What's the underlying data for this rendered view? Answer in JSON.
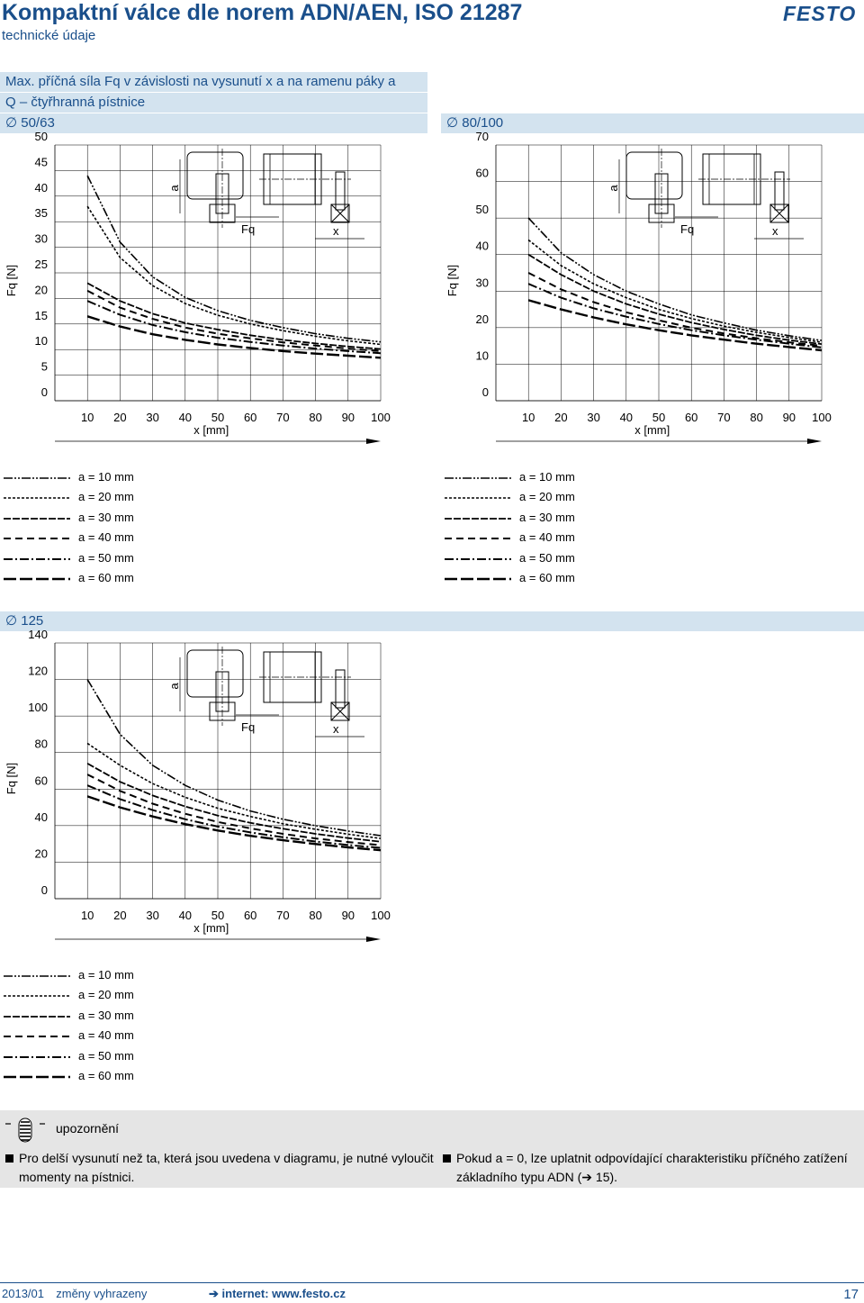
{
  "header": {
    "title": "Kompaktní válce dle norem ADN/AEN, ISO 21287",
    "subtitle": "technické údaje",
    "logo_text": "FESTO",
    "brand_color": "#1a4f8b"
  },
  "section": {
    "title": "Max. příčná síla Fq v závislosti na vysunutí x a na ramenu páky a",
    "subtitle": "Q – čtyřhranná pístnice"
  },
  "diameter_symbol": "∅",
  "diagram_labels": {
    "a": "a",
    "fq": "Fq",
    "x": "x"
  },
  "legend_entries": [
    "a = 10 mm",
    "a = 20 mm",
    "a = 30 mm",
    "a = 40 mm",
    "a = 50 mm",
    "a = 60 mm"
  ],
  "chart_data": [
    {
      "type": "line",
      "title": "50/63",
      "xlabel": "x [mm]",
      "ylabel": "Fq [N]",
      "xlim": [
        0,
        100
      ],
      "ylim": [
        0,
        50
      ],
      "x_ticks": [
        10,
        20,
        30,
        40,
        50,
        60,
        70,
        80,
        90,
        100
      ],
      "y_ticks": [
        0,
        5,
        10,
        15,
        20,
        25,
        30,
        35,
        40,
        45,
        50
      ],
      "grid": true,
      "series": [
        {
          "name": "a = 10 mm",
          "x": [
            10,
            20,
            30,
            40,
            50,
            60,
            70,
            80,
            90,
            100
          ],
          "y": [
            44,
            31,
            24.2,
            20.2,
            17.6,
            15.7,
            14.3,
            13.1,
            12.2,
            11.5
          ]
        },
        {
          "name": "a = 20 mm",
          "x": [
            10,
            20,
            30,
            40,
            50,
            60,
            70,
            80,
            90,
            100
          ],
          "y": [
            38,
            28,
            22.5,
            19,
            16.7,
            15,
            13.7,
            12.6,
            11.7,
            11
          ]
        },
        {
          "name": "a = 30 mm",
          "x": [
            10,
            20,
            30,
            40,
            50,
            60,
            70,
            80,
            90,
            100
          ],
          "y": [
            23,
            19.5,
            17,
            15.2,
            13.9,
            12.8,
            11.9,
            11.2,
            10.6,
            10.1
          ]
        },
        {
          "name": "a = 40 mm",
          "x": [
            10,
            20,
            30,
            40,
            50,
            60,
            70,
            80,
            90,
            100
          ],
          "y": [
            21.5,
            18.2,
            16,
            14.3,
            13.1,
            12.2,
            11.4,
            10.8,
            10.2,
            9.7
          ]
        },
        {
          "name": "a = 50 mm",
          "x": [
            10,
            20,
            30,
            40,
            50,
            60,
            70,
            80,
            90,
            100
          ],
          "y": [
            19.5,
            16.8,
            14.8,
            13.4,
            12.3,
            11.5,
            10.8,
            10.2,
            9.7,
            9.3
          ]
        },
        {
          "name": "a = 60 mm",
          "x": [
            10,
            20,
            30,
            40,
            50,
            60,
            70,
            80,
            90,
            100
          ],
          "y": [
            16.5,
            14.5,
            13,
            11.9,
            11,
            10.3,
            9.7,
            9.2,
            8.8,
            8.4
          ]
        }
      ]
    },
    {
      "type": "line",
      "title": "80/100",
      "xlabel": "x [mm]",
      "ylabel": "Fq [N]",
      "xlim": [
        0,
        100
      ],
      "ylim": [
        0,
        70
      ],
      "x_ticks": [
        10,
        20,
        30,
        40,
        50,
        60,
        70,
        80,
        90,
        100
      ],
      "y_ticks": [
        0,
        10,
        20,
        30,
        40,
        50,
        60,
        70
      ],
      "grid": true,
      "series": [
        {
          "name": "a = 10 mm",
          "x": [
            10,
            20,
            30,
            40,
            50,
            60,
            70,
            80,
            90,
            100
          ],
          "y": [
            50,
            40.5,
            34.5,
            30,
            26.5,
            23.5,
            21.3,
            19.3,
            17.8,
            16.5
          ]
        },
        {
          "name": "a = 20 mm",
          "x": [
            10,
            20,
            30,
            40,
            50,
            60,
            70,
            80,
            90,
            100
          ],
          "y": [
            44,
            37,
            32,
            28.2,
            25,
            22.5,
            20.4,
            18.7,
            17.3,
            16
          ]
        },
        {
          "name": "a = 30 mm",
          "x": [
            10,
            20,
            30,
            40,
            50,
            60,
            70,
            80,
            90,
            100
          ],
          "y": [
            40,
            34.5,
            30,
            26.5,
            23.7,
            21.4,
            19.5,
            17.9,
            16.6,
            15.5
          ]
        },
        {
          "name": "a = 40 mm",
          "x": [
            10,
            20,
            30,
            40,
            50,
            60,
            70,
            80,
            90,
            100
          ],
          "y": [
            35,
            30.5,
            27,
            24.2,
            22,
            20,
            18.4,
            17.1,
            16,
            15
          ]
        },
        {
          "name": "a = 50 mm",
          "x": [
            10,
            20,
            30,
            40,
            50,
            60,
            70,
            80,
            90,
            100
          ],
          "y": [
            32,
            28.2,
            25.3,
            23,
            21,
            19.3,
            17.9,
            16.7,
            15.6,
            14.6
          ]
        },
        {
          "name": "a = 60 mm",
          "x": [
            10,
            20,
            30,
            40,
            50,
            60,
            70,
            80,
            90,
            100
          ],
          "y": [
            27.5,
            25,
            22.8,
            20.9,
            19.3,
            17.9,
            16.7,
            15.6,
            14.7,
            13.8
          ]
        }
      ]
    },
    {
      "type": "line",
      "title": "125",
      "xlabel": "x [mm]",
      "ylabel": "Fq [N]",
      "xlim": [
        0,
        100
      ],
      "ylim": [
        0,
        140
      ],
      "x_ticks": [
        10,
        20,
        30,
        40,
        50,
        60,
        70,
        80,
        90,
        100
      ],
      "y_ticks": [
        0,
        20,
        40,
        60,
        80,
        100,
        120,
        140
      ],
      "grid": true,
      "series": [
        {
          "name": "a = 10 mm",
          "x": [
            10,
            20,
            30,
            40,
            50,
            60,
            70,
            80,
            90,
            100
          ],
          "y": [
            120,
            90,
            73,
            62,
            54,
            48,
            43.5,
            40,
            37,
            34.5
          ]
        },
        {
          "name": "a = 20 mm",
          "x": [
            10,
            20,
            30,
            40,
            50,
            60,
            70,
            80,
            90,
            100
          ],
          "y": [
            85,
            73,
            63,
            55.5,
            49.5,
            45,
            41,
            38,
            35.3,
            33
          ]
        },
        {
          "name": "a = 30 mm",
          "x": [
            10,
            20,
            30,
            40,
            50,
            60,
            70,
            80,
            90,
            100
          ],
          "y": [
            74,
            64,
            56.5,
            50.5,
            45.5,
            41.5,
            38.3,
            35.5,
            33.2,
            31.2
          ]
        },
        {
          "name": "a = 40 mm",
          "x": [
            10,
            20,
            30,
            40,
            50,
            60,
            70,
            80,
            90,
            100
          ],
          "y": [
            68,
            59,
            52,
            46.5,
            42,
            38.5,
            35.5,
            33,
            31,
            29.3
          ]
        },
        {
          "name": "a = 50 mm",
          "x": [
            10,
            20,
            30,
            40,
            50,
            60,
            70,
            80,
            90,
            100
          ],
          "y": [
            62,
            54.5,
            48.5,
            43.5,
            39.5,
            36.3,
            33.6,
            31.3,
            29.4,
            27.8
          ]
        },
        {
          "name": "a = 60 mm",
          "x": [
            10,
            20,
            30,
            40,
            50,
            60,
            70,
            80,
            90,
            100
          ],
          "y": [
            56,
            50,
            45,
            40.8,
            37.3,
            34.4,
            32,
            29.9,
            28.1,
            26.5
          ]
        }
      ]
    }
  ],
  "notes": {
    "title": "upozornění",
    "left_line1": "Pro delší vysunutí než ta, která jsou uvedena v diagramu, je nutné vyloučit",
    "left_line2": "momenty na pístnici.",
    "right_line1": "Pokud a = 0, lze uplatnit odpovídající charakteristiku příčného zatížení",
    "right_line2_prefix": "základního typu ADN (",
    "right_line2_arrow": "➔",
    "right_line2_suffix": " 15)."
  },
  "footer": {
    "date": "2013/01",
    "changes": "změny vyhrazeny",
    "arrow": "➔",
    "internet": "internet: www.festo.cz",
    "page": "17"
  }
}
